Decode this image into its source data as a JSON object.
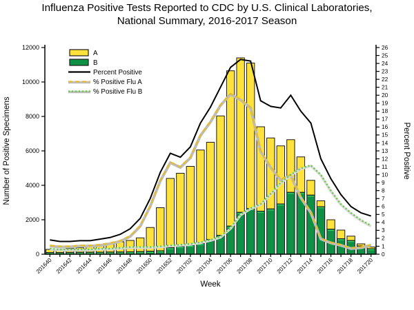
{
  "title": {
    "line1": "Influenza Positive Tests Reported to CDC by U.S. Clinical Laboratories,",
    "line2": "National Summary, 2016-2017 Season"
  },
  "chart_data": {
    "type": "bar",
    "subtype": "stacked-bars-with-percent-lines",
    "x_axis": {
      "label": "Week",
      "labeled_every": 2
    },
    "left_axis": {
      "label": "Number of Positive Specimens",
      "min": 0,
      "max": 12000,
      "tick_step": 2000
    },
    "right_axis": {
      "label": "Percent Positive",
      "min": 0,
      "max": 26,
      "tick_step": 1
    },
    "grid": "off",
    "legend_position": "top-left-inside",
    "categories": [
      "201640",
      "201641",
      "201642",
      "201643",
      "201644",
      "201645",
      "201646",
      "201647",
      "201648",
      "201649",
      "201650",
      "201651",
      "201652",
      "201701",
      "201702",
      "201703",
      "201704",
      "201705",
      "201706",
      "201707",
      "201708",
      "201709",
      "201710",
      "201711",
      "201712",
      "201713",
      "201714",
      "201715",
      "201716",
      "201717",
      "201718",
      "201719",
      "201720"
    ],
    "series": [
      {
        "name": "A",
        "type": "bar",
        "axis": "left",
        "color": "#ffe23c",
        "values": [
          180,
          195,
          225,
          265,
          325,
          410,
          515,
          590,
          660,
          800,
          1380,
          2500,
          4020,
          4250,
          4580,
          5430,
          5650,
          6940,
          9020,
          8970,
          8450,
          4900,
          4120,
          3370,
          3060,
          2060,
          860,
          340,
          550,
          500,
          250,
          120,
          100
        ]
      },
      {
        "name": "B",
        "type": "bar",
        "axis": "left",
        "color": "#0e9144",
        "values": [
          100,
          95,
          105,
          110,
          115,
          120,
          125,
          130,
          140,
          150,
          170,
          200,
          380,
          450,
          520,
          620,
          850,
          1090,
          1630,
          2430,
          2650,
          2500,
          2630,
          2920,
          3590,
          3590,
          3430,
          2760,
          1450,
          900,
          800,
          480,
          320
        ]
      },
      {
        "name": "Percent Positive",
        "type": "line",
        "style": "solid",
        "axis": "right",
        "color": "#000000",
        "values": [
          1.8,
          1.6,
          1.6,
          1.7,
          1.7,
          1.9,
          2.1,
          2.5,
          3.2,
          4.5,
          7.0,
          10.3,
          12.7,
          12.2,
          13.5,
          16.5,
          18.5,
          21.0,
          23.5,
          24.5,
          24.3,
          19.3,
          18.6,
          18.4,
          20.0,
          18.0,
          16.5,
          12.0,
          9.5,
          7.5,
          6.0,
          5.2,
          4.8
        ]
      },
      {
        "name": "% Positive Flu A",
        "type": "line",
        "style": "dashed",
        "axis": "right",
        "color": "#e2bc32",
        "values": [
          1.1,
          1.0,
          1.0,
          1.1,
          1.1,
          1.2,
          1.4,
          1.7,
          2.3,
          3.6,
          6.1,
          9.3,
          11.6,
          11.0,
          12.2,
          15.0,
          16.7,
          18.8,
          20.2,
          19.5,
          18.5,
          13.0,
          11.0,
          9.4,
          10.0,
          7.2,
          5.3,
          2.0,
          1.5,
          1.2,
          0.8,
          0.9,
          1.2
        ]
      },
      {
        "name": "% Positive Flu B",
        "type": "line",
        "style": "dotted",
        "axis": "right",
        "color": "#5ccd35",
        "values": [
          0.7,
          0.6,
          0.6,
          0.6,
          0.6,
          0.7,
          0.7,
          0.8,
          0.9,
          0.9,
          0.9,
          1.0,
          1.1,
          1.2,
          1.3,
          1.5,
          1.8,
          2.2,
          3.3,
          5.0,
          5.8,
          6.3,
          7.6,
          9.0,
          10.0,
          10.8,
          11.2,
          10.0,
          8.0,
          6.3,
          5.2,
          4.3,
          3.6
        ]
      }
    ]
  },
  "legend": {
    "items": [
      {
        "label": "A",
        "swatch": "bar",
        "color": "#ffe23c"
      },
      {
        "label": "B",
        "swatch": "bar",
        "color": "#0e9144"
      },
      {
        "label": "Percent Positive",
        "swatch": "line-solid",
        "color": "#000000"
      },
      {
        "label": "% Positive Flu A",
        "swatch": "line-dashed",
        "color": "#e2bc32"
      },
      {
        "label": "% Positive Flu B",
        "swatch": "line-dotted",
        "color": "#5ccd35"
      }
    ]
  },
  "style_colors": {
    "bar_outline": "#1a1a1a",
    "halo": "#bdbdbd",
    "axis": "#000000"
  }
}
